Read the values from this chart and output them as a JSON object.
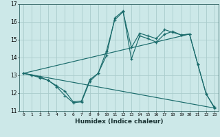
{
  "xlabel": "Humidex (Indice chaleur)",
  "background_color": "#cce8e8",
  "grid_color": "#aacccc",
  "line_color": "#1a6b6b",
  "xlim": [
    -0.5,
    23.5
  ],
  "ylim": [
    11,
    17
  ],
  "yticks": [
    11,
    12,
    13,
    14,
    15,
    16,
    17
  ],
  "xticks": [
    0,
    1,
    2,
    3,
    4,
    5,
    6,
    7,
    8,
    9,
    10,
    11,
    12,
    13,
    14,
    15,
    16,
    17,
    18,
    19,
    20,
    21,
    22,
    23
  ],
  "line1_x": [
    0,
    1,
    2,
    3,
    4,
    5,
    6,
    7,
    8,
    9,
    10,
    11,
    12,
    13,
    14,
    15,
    16,
    17,
    18,
    19,
    20,
    21,
    22,
    23
  ],
  "line1_y": [
    13.1,
    13.0,
    12.9,
    12.7,
    12.35,
    11.85,
    11.45,
    11.5,
    12.65,
    13.1,
    14.1,
    16.2,
    16.6,
    13.9,
    15.2,
    15.05,
    14.85,
    15.3,
    15.45,
    15.25,
    15.3,
    13.6,
    11.95,
    11.2
  ],
  "line2_x": [
    0,
    1,
    2,
    3,
    4,
    5,
    6,
    7,
    8,
    9,
    10,
    11,
    12,
    13,
    14,
    15,
    16,
    17,
    18,
    19,
    20,
    21,
    22,
    23
  ],
  "line2_y": [
    13.1,
    13.0,
    12.85,
    12.7,
    12.4,
    12.1,
    11.5,
    11.55,
    12.75,
    13.1,
    14.35,
    16.1,
    16.55,
    14.55,
    15.35,
    15.2,
    15.05,
    15.55,
    15.4,
    15.25,
    15.3,
    13.6,
    11.95,
    11.15
  ],
  "line3_x": [
    0,
    23
  ],
  "line3_y": [
    13.1,
    11.15
  ],
  "line4_x": [
    0,
    20
  ],
  "line4_y": [
    13.1,
    15.3
  ]
}
